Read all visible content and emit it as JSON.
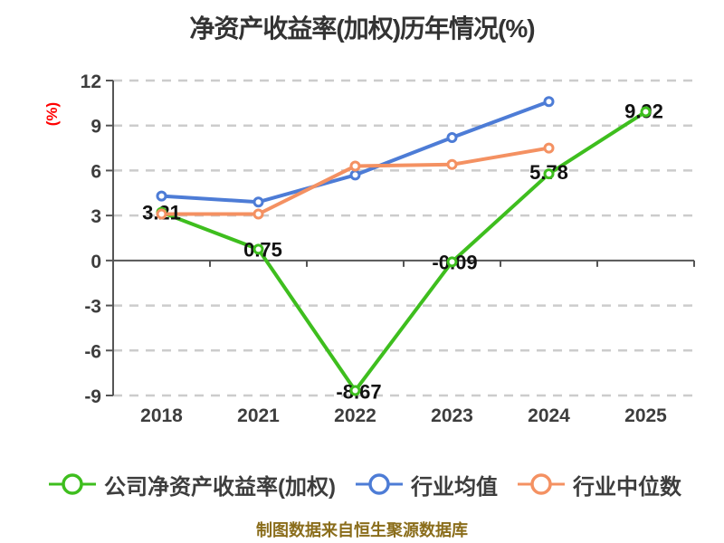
{
  "chart_data": {
    "type": "line",
    "title": "净资产收益率(加权)历年情况(%)",
    "ylabel": "(%)",
    "categories": [
      "2018",
      "2021",
      "2022",
      "2023",
      "2024",
      "2025"
    ],
    "ylim": [
      -9,
      12
    ],
    "yticks": [
      12,
      9,
      6,
      3,
      0,
      -3,
      -6,
      -9
    ],
    "grid": "horizontal-dashed",
    "legend_position": "bottom",
    "series": [
      {
        "name": "公司净资产收益率(加权)",
        "color": "#3ebe1e",
        "values": [
          3.21,
          0.75,
          -8.67,
          -0.09,
          5.78,
          9.92
        ],
        "point_labels": [
          "3.21",
          "0.75",
          "-8.67",
          "-0.09",
          "5.78",
          "9.92"
        ]
      },
      {
        "name": "行业均值",
        "color": "#4d7cd6",
        "values": [
          4.3,
          3.9,
          5.7,
          8.2,
          10.6
        ],
        "point_labels": []
      },
      {
        "name": "行业中位数",
        "color": "#f49162",
        "values": [
          3.1,
          3.1,
          6.3,
          6.4,
          7.5
        ],
        "point_labels": []
      }
    ],
    "footnote": "制图数据来自恒生聚源数据库",
    "colors": {
      "grid": "#cccccc",
      "axis": "#555555",
      "tick_text": "#3d3d3d",
      "data_label": "#111111",
      "title_text": "#333333",
      "ylabel_text": "#ff0000",
      "footnote_text": "#8a6d1b",
      "background": "#ffffff"
    }
  }
}
